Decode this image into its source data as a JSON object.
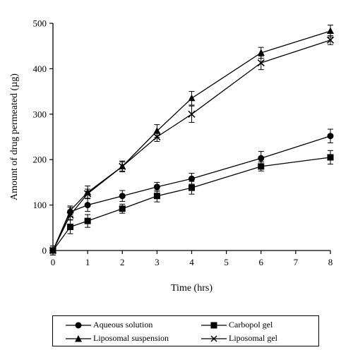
{
  "chart_data": {
    "type": "line",
    "title": "",
    "xlabel": "Time (hrs)",
    "ylabel": "Amount of drug permeated (µg)",
    "xlim": [
      0,
      8
    ],
    "ylim": [
      0,
      500
    ],
    "x_ticks": [
      "0",
      "1",
      "2",
      "3",
      "4",
      "5",
      "6",
      "7",
      "8"
    ],
    "y_ticks": [
      "0",
      "100",
      "200",
      "300",
      "400",
      "500"
    ],
    "grid": false,
    "legend_position": "bottom",
    "series": [
      {
        "name": "Aqueous solution",
        "marker": "circle",
        "x": [
          0,
          0.5,
          1,
          2,
          3,
          4,
          6,
          8
        ],
        "y": [
          0,
          85,
          100,
          120,
          140,
          158,
          203,
          252
        ],
        "err": [
          10,
          10,
          14,
          12,
          10,
          12,
          15,
          15
        ]
      },
      {
        "name": "Carbopol gel",
        "marker": "square",
        "x": [
          0,
          0.5,
          1,
          2,
          3,
          4,
          6,
          8
        ],
        "y": [
          0,
          52,
          65,
          92,
          120,
          138,
          185,
          205
        ],
        "err": [
          10,
          15,
          14,
          10,
          13,
          14,
          10,
          15
        ]
      },
      {
        "name": "Liposomal suspension",
        "marker": "triangle",
        "x": [
          0,
          0.5,
          1,
          2,
          3,
          4,
          6,
          8
        ],
        "y": [
          0,
          88,
          128,
          185,
          263,
          335,
          435,
          483
        ],
        "err": [
          10,
          10,
          14,
          12,
          14,
          15,
          12,
          13
        ]
      },
      {
        "name": "Liposomal gel",
        "marker": "cross",
        "x": [
          0,
          0.5,
          1,
          2,
          3,
          4,
          6,
          8
        ],
        "y": [
          0,
          78,
          125,
          185,
          250,
          300,
          413,
          463
        ],
        "err": [
          10,
          10,
          10,
          10,
          10,
          18,
          15,
          10
        ]
      }
    ]
  }
}
